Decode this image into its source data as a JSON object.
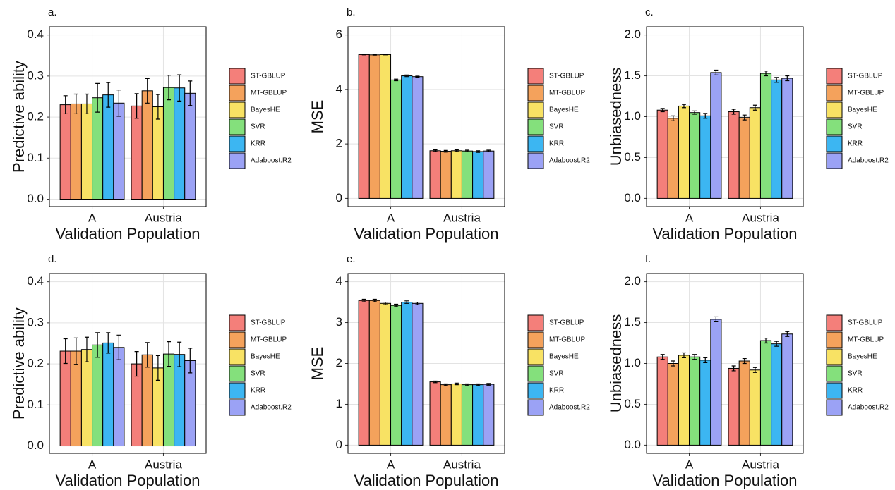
{
  "chart_data": [
    {
      "type": "bar",
      "title": "a.",
      "xlabel": "Validation Population",
      "ylabel": "Predictive ability",
      "categories": [
        "A",
        "Austria"
      ],
      "series": [
        {
          "name": "ST-GBLUP",
          "color": "#f47f7a",
          "values": [
            0.23,
            0.227
          ],
          "errors": [
            0.022,
            0.03
          ]
        },
        {
          "name": "MT-GBLUP",
          "color": "#f4a25c",
          "values": [
            0.232,
            0.264
          ],
          "errors": [
            0.024,
            0.03
          ]
        },
        {
          "name": "BayesHE",
          "color": "#f8e264",
          "values": [
            0.232,
            0.225
          ],
          "errors": [
            0.024,
            0.03
          ]
        },
        {
          "name": "SVR",
          "color": "#84e07c",
          "values": [
            0.247,
            0.272
          ],
          "errors": [
            0.035,
            0.03
          ]
        },
        {
          "name": "KRR",
          "color": "#3cb6f2",
          "values": [
            0.254,
            0.271
          ],
          "errors": [
            0.03,
            0.032
          ]
        },
        {
          "name": "Adaboost.R2",
          "color": "#9ba2f5",
          "values": [
            0.234,
            0.258
          ],
          "errors": [
            0.032,
            0.03
          ]
        }
      ],
      "ylim": [
        -0.018,
        0.42
      ],
      "yticks": [
        {
          "value": 0,
          "label": "0.0"
        },
        0.1,
        0.2,
        0.3,
        0.4
      ],
      "grid": true,
      "legend": "right"
    },
    {
      "type": "bar",
      "title": "b.",
      "xlabel": "Validation Population",
      "ylabel": "MSE",
      "categories": [
        "A",
        "Austria"
      ],
      "series": [
        {
          "name": "ST-GBLUP",
          "color": "#f47f7a",
          "values": [
            5.28,
            1.75
          ],
          "errors": [
            0.01,
            0.03
          ]
        },
        {
          "name": "MT-GBLUP",
          "color": "#f4a25c",
          "values": [
            5.27,
            1.73
          ],
          "errors": [
            0.01,
            0.03
          ]
        },
        {
          "name": "BayesHE",
          "color": "#f8e264",
          "values": [
            5.28,
            1.75
          ],
          "errors": [
            0.01,
            0.03
          ]
        },
        {
          "name": "SVR",
          "color": "#84e07c",
          "values": [
            4.35,
            1.74
          ],
          "errors": [
            0.03,
            0.03
          ]
        },
        {
          "name": "KRR",
          "color": "#3cb6f2",
          "values": [
            4.5,
            1.72
          ],
          "errors": [
            0.03,
            0.03
          ]
        },
        {
          "name": "Adaboost.R2",
          "color": "#9ba2f5",
          "values": [
            4.47,
            1.74
          ],
          "errors": [
            0.02,
            0.03
          ]
        }
      ],
      "ylim": [
        -0.3,
        6.3
      ],
      "yticks": [
        0,
        2,
        4,
        6
      ],
      "grid": true,
      "legend": "right"
    },
    {
      "type": "bar",
      "title": "c.",
      "xlabel": "Validation Population",
      "ylabel": "Unbiasedness",
      "categories": [
        "A",
        "Austria"
      ],
      "series": [
        {
          "name": "ST-GBLUP",
          "color": "#f47f7a",
          "values": [
            1.08,
            1.06
          ],
          "errors": [
            0.02,
            0.03
          ]
        },
        {
          "name": "MT-GBLUP",
          "color": "#f4a25c",
          "values": [
            0.98,
            0.99
          ],
          "errors": [
            0.03,
            0.03
          ]
        },
        {
          "name": "BayesHE",
          "color": "#f8e264",
          "values": [
            1.13,
            1.11
          ],
          "errors": [
            0.02,
            0.03
          ]
        },
        {
          "name": "SVR",
          "color": "#84e07c",
          "values": [
            1.05,
            1.53
          ],
          "errors": [
            0.02,
            0.03
          ]
        },
        {
          "name": "KRR",
          "color": "#3cb6f2",
          "values": [
            1.01,
            1.45
          ],
          "errors": [
            0.03,
            0.03
          ]
        },
        {
          "name": "Adaboost.R2",
          "color": "#9ba2f5",
          "values": [
            1.54,
            1.47
          ],
          "errors": [
            0.03,
            0.03
          ]
        }
      ],
      "ylim": [
        -0.1,
        2.1
      ],
      "yticks": [
        {
          "value": 0,
          "label": "0.0"
        },
        0.5,
        {
          "value": 1,
          "label": "1.0"
        },
        1.5,
        {
          "value": 2,
          "label": "2.0"
        }
      ],
      "grid": true,
      "legend": "right"
    },
    {
      "type": "bar",
      "title": "d.",
      "xlabel": "Validation Population",
      "ylabel": "Predictive ability",
      "categories": [
        "A",
        "Austria"
      ],
      "series": [
        {
          "name": "ST-GBLUP",
          "color": "#f47f7a",
          "values": [
            0.231,
            0.2
          ],
          "errors": [
            0.03,
            0.03
          ]
        },
        {
          "name": "MT-GBLUP",
          "color": "#f4a25c",
          "values": [
            0.231,
            0.222
          ],
          "errors": [
            0.032,
            0.03
          ]
        },
        {
          "name": "BayesHE",
          "color": "#f8e264",
          "values": [
            0.235,
            0.19
          ],
          "errors": [
            0.03,
            0.03
          ]
        },
        {
          "name": "SVR",
          "color": "#84e07c",
          "values": [
            0.246,
            0.224
          ],
          "errors": [
            0.03,
            0.03
          ]
        },
        {
          "name": "KRR",
          "color": "#3cb6f2",
          "values": [
            0.251,
            0.223
          ],
          "errors": [
            0.025,
            0.03
          ]
        },
        {
          "name": "Adaboost.R2",
          "color": "#9ba2f5",
          "values": [
            0.24,
            0.208
          ],
          "errors": [
            0.03,
            0.03
          ]
        }
      ],
      "ylim": [
        -0.018,
        0.42
      ],
      "yticks": [
        {
          "value": 0,
          "label": "0.0"
        },
        0.1,
        0.2,
        0.3,
        0.4
      ],
      "grid": true,
      "legend": "right"
    },
    {
      "type": "bar",
      "title": "e.",
      "xlabel": "Validation Population",
      "ylabel": "MSE",
      "categories": [
        "A",
        "Austria"
      ],
      "series": [
        {
          "name": "ST-GBLUP",
          "color": "#f47f7a",
          "values": [
            3.54,
            1.55
          ],
          "errors": [
            0.03,
            0.02
          ]
        },
        {
          "name": "MT-GBLUP",
          "color": "#f4a25c",
          "values": [
            3.54,
            1.48
          ],
          "errors": [
            0.03,
            0.02
          ]
        },
        {
          "name": "BayesHE",
          "color": "#f8e264",
          "values": [
            3.47,
            1.5
          ],
          "errors": [
            0.03,
            0.02
          ]
        },
        {
          "name": "SVR",
          "color": "#84e07c",
          "values": [
            3.42,
            1.48
          ],
          "errors": [
            0.03,
            0.02
          ]
        },
        {
          "name": "KRR",
          "color": "#3cb6f2",
          "values": [
            3.5,
            1.48
          ],
          "errors": [
            0.03,
            0.02
          ]
        },
        {
          "name": "Adaboost.R2",
          "color": "#9ba2f5",
          "values": [
            3.47,
            1.49
          ],
          "errors": [
            0.03,
            0.02
          ]
        }
      ],
      "ylim": [
        -0.2,
        4.2
      ],
      "yticks": [
        0,
        1,
        2,
        3,
        4
      ],
      "grid": true,
      "legend": "right"
    },
    {
      "type": "bar",
      "title": "f.",
      "xlabel": "Validation Population",
      "ylabel": "Unbiasedness",
      "categories": [
        "A",
        "Austria"
      ],
      "series": [
        {
          "name": "ST-GBLUP",
          "color": "#f47f7a",
          "values": [
            1.08,
            0.94
          ],
          "errors": [
            0.03,
            0.03
          ]
        },
        {
          "name": "MT-GBLUP",
          "color": "#f4a25c",
          "values": [
            1.0,
            1.03
          ],
          "errors": [
            0.03,
            0.03
          ]
        },
        {
          "name": "BayesHE",
          "color": "#f8e264",
          "values": [
            1.1,
            0.92
          ],
          "errors": [
            0.03,
            0.03
          ]
        },
        {
          "name": "SVR",
          "color": "#84e07c",
          "values": [
            1.08,
            1.28
          ],
          "errors": [
            0.03,
            0.03
          ]
        },
        {
          "name": "KRR",
          "color": "#3cb6f2",
          "values": [
            1.04,
            1.24
          ],
          "errors": [
            0.03,
            0.03
          ]
        },
        {
          "name": "Adaboost.R2",
          "color": "#9ba2f5",
          "values": [
            1.54,
            1.36
          ],
          "errors": [
            0.03,
            0.03
          ]
        }
      ],
      "ylim": [
        -0.1,
        2.1
      ],
      "yticks": [
        {
          "value": 0,
          "label": "0.0"
        },
        0.5,
        {
          "value": 1,
          "label": "1.0"
        },
        1.5,
        {
          "value": 2,
          "label": "2.0"
        }
      ],
      "grid": true,
      "legend": "right"
    }
  ]
}
